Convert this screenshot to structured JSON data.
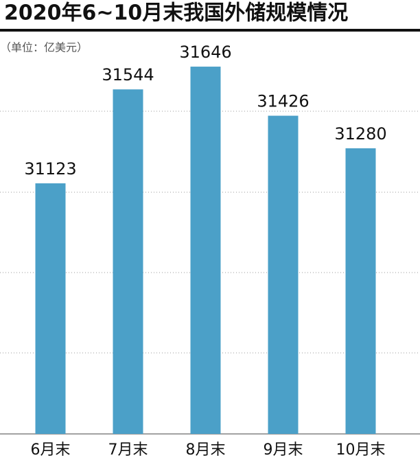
{
  "chart_data": {
    "type": "bar",
    "title": "2020年6~10月末我国外储规模情况",
    "subtitle": "（单位：亿美元）",
    "categories": [
      "6月末",
      "7月末",
      "8月末",
      "9月末",
      "10月末"
    ],
    "values": [
      31123,
      31544,
      31646,
      31426,
      31280
    ],
    "color": "#4ba0c8",
    "ylim": [
      30000,
      31800
    ]
  }
}
